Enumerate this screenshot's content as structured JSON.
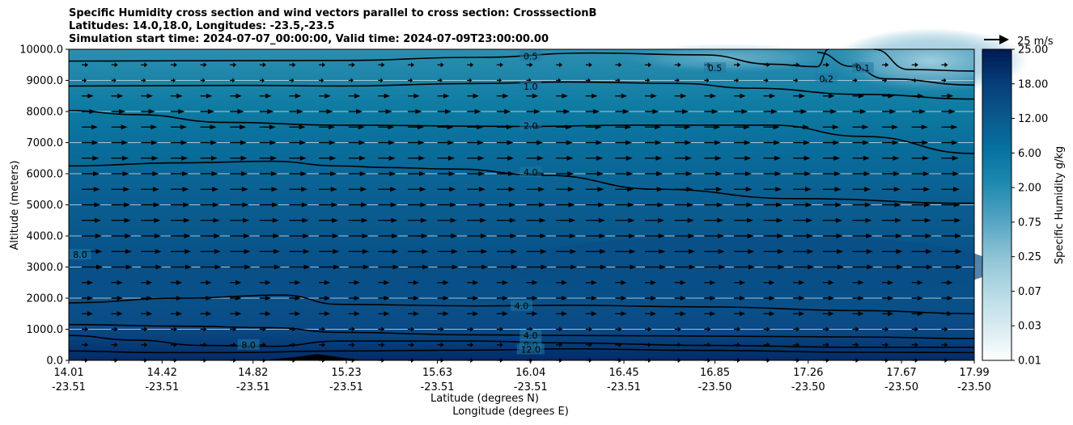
{
  "chart_data": {
    "type": "heatmap",
    "title_lines": [
      "Specific Humidity cross section and wind vectors parallel to cross section: CrosssectionB",
      "Latitudes: 14.0,18.0, Longitudes: -23.5,-23.5",
      "Simulation start time: 2024-07-07_00:00:00, Valid time: 2024-07-09T23:00:00.00"
    ],
    "ylabel": "Altitude (meters)",
    "xlabel_lat": "Latitude (degrees N)",
    "xlabel_lon": "Longitude (degrees E)",
    "ylim": [
      0,
      10000
    ],
    "y_ticks": [
      "0.0",
      "1000.0",
      "2000.0",
      "3000.0",
      "4000.0",
      "5000.0",
      "6000.0",
      "7000.0",
      "8000.0",
      "9000.0",
      "10000.0"
    ],
    "x_ticks": [
      {
        "lat": "14.01",
        "lon": "-23.51"
      },
      {
        "lat": "14.42",
        "lon": "-23.51"
      },
      {
        "lat": "14.82",
        "lon": "-23.51"
      },
      {
        "lat": "15.23",
        "lon": "-23.51"
      },
      {
        "lat": "15.63",
        "lon": "-23.51"
      },
      {
        "lat": "16.04",
        "lon": "-23.51"
      },
      {
        "lat": "16.45",
        "lon": "-23.51"
      },
      {
        "lat": "16.85",
        "lon": "-23.50"
      },
      {
        "lat": "17.26",
        "lon": "-23.50"
      },
      {
        "lat": "17.67",
        "lon": "-23.50"
      },
      {
        "lat": "17.99",
        "lon": "-23.50"
      }
    ],
    "colorbar_label": "Specific Humidity g/kg",
    "colorbar_ticks": [
      "0.01",
      "0.03",
      "0.07",
      "0.25",
      "0.75",
      "2.00",
      "6.00",
      "12.00",
      "18.00",
      "25.00"
    ],
    "quiver_key": "25 m/s",
    "contour_labels": [
      {
        "text": "0.5",
        "x": 16.04,
        "y": 9780
      },
      {
        "text": "0.5",
        "x": 16.85,
        "y": 9400
      },
      {
        "text": "0.1",
        "x": 17.5,
        "y": 9400
      },
      {
        "text": "0.2",
        "x": 17.34,
        "y": 9050
      },
      {
        "text": "1.0",
        "x": 16.04,
        "y": 8800
      },
      {
        "text": "2.0",
        "x": 16.04,
        "y": 7550
      },
      {
        "text": "4.0",
        "x": 16.04,
        "y": 6050
      },
      {
        "text": "8.0",
        "x": 14.06,
        "y": 3400
      },
      {
        "text": "4.0",
        "x": 16.0,
        "y": 1750
      },
      {
        "text": "4.0",
        "x": 16.04,
        "y": 800
      },
      {
        "text": "8.0",
        "x": 16.04,
        "y": 500
      },
      {
        "text": "12.0",
        "x": 16.04,
        "y": 350
      },
      {
        "text": "8.0",
        "x": 14.8,
        "y": 500
      }
    ],
    "contour_lines": [
      {
        "level": "0.5",
        "points": [
          [
            14.01,
            9620
          ],
          [
            14.5,
            9630
          ],
          [
            15.2,
            9640
          ],
          [
            15.8,
            9740
          ],
          [
            16.3,
            9880
          ],
          [
            16.8,
            9820
          ],
          [
            17.1,
            9520
          ],
          [
            17.3,
            9440
          ],
          [
            17.35,
            10000
          ]
        ]
      },
      {
        "level": "0.2",
        "points": [
          [
            17.3,
            9900
          ],
          [
            17.45,
            9450
          ],
          [
            17.6,
            9050
          ],
          [
            17.99,
            8850
          ]
        ]
      },
      {
        "level": "0.1",
        "points": [
          [
            17.55,
            10000
          ],
          [
            17.7,
            9350
          ],
          [
            17.99,
            9300
          ]
        ]
      },
      {
        "level": "1.0",
        "points": [
          [
            14.01,
            8820
          ],
          [
            14.8,
            8840
          ],
          [
            15.2,
            8820
          ],
          [
            15.8,
            8900
          ],
          [
            16.2,
            8950
          ],
          [
            16.7,
            8900
          ],
          [
            17.0,
            8750
          ],
          [
            17.5,
            8550
          ],
          [
            17.99,
            8400
          ]
        ]
      },
      {
        "level": "2.0",
        "points": [
          [
            14.01,
            8030
          ],
          [
            14.3,
            7900
          ],
          [
            14.7,
            7650
          ],
          [
            15.2,
            7560
          ],
          [
            16.0,
            7520
          ],
          [
            16.5,
            7560
          ],
          [
            17.1,
            7560
          ],
          [
            17.5,
            7200
          ],
          [
            17.99,
            6650
          ]
        ]
      },
      {
        "level": "4.0",
        "points": [
          [
            14.01,
            6250
          ],
          [
            14.5,
            6350
          ],
          [
            14.9,
            6400
          ],
          [
            15.2,
            6250
          ],
          [
            15.4,
            6200
          ],
          [
            15.7,
            6150
          ],
          [
            16.1,
            5950
          ],
          [
            16.6,
            5500
          ],
          [
            17.2,
            5200
          ],
          [
            17.99,
            5050
          ]
        ]
      },
      {
        "level": "4.0",
        "points": [
          [
            14.01,
            1850
          ],
          [
            14.5,
            2000
          ],
          [
            14.95,
            2100
          ],
          [
            15.2,
            1800
          ],
          [
            15.8,
            1750
          ],
          [
            16.2,
            1770
          ],
          [
            16.8,
            1720
          ],
          [
            17.5,
            1600
          ],
          [
            17.99,
            1500
          ]
        ]
      },
      {
        "level": "4.0",
        "points": [
          [
            14.01,
            1150
          ],
          [
            14.5,
            1100
          ],
          [
            14.9,
            1050
          ],
          [
            15.2,
            900
          ],
          [
            15.8,
            820
          ],
          [
            16.2,
            800
          ],
          [
            16.8,
            780
          ],
          [
            17.5,
            750
          ],
          [
            17.99,
            700
          ]
        ]
      },
      {
        "level": "8.0",
        "points": [
          [
            14.01,
            800
          ],
          [
            14.3,
            650
          ],
          [
            14.6,
            480
          ],
          [
            14.9,
            450
          ],
          [
            15.2,
            620
          ],
          [
            15.8,
            620
          ],
          [
            16.2,
            560
          ],
          [
            16.8,
            480
          ],
          [
            17.5,
            420
          ],
          [
            17.99,
            420
          ]
        ]
      },
      {
        "level": "12.0",
        "points": [
          [
            14.01,
            300
          ],
          [
            14.4,
            250
          ],
          [
            14.7,
            250
          ],
          [
            15.2,
            300
          ],
          [
            15.8,
            330
          ],
          [
            16.2,
            370
          ],
          [
            16.8,
            320
          ],
          [
            17.5,
            260
          ],
          [
            17.99,
            250
          ]
        ]
      }
    ],
    "terrain": [
      [
        14.85,
        0
      ],
      [
        15.0,
        100
      ],
      [
        15.1,
        200
      ],
      [
        15.2,
        100
      ],
      [
        15.3,
        0
      ]
    ],
    "colors": {
      "axes_edge": "#000000",
      "grid": "#c8dce6",
      "line": "#000000",
      "quiver": "#000000"
    }
  }
}
